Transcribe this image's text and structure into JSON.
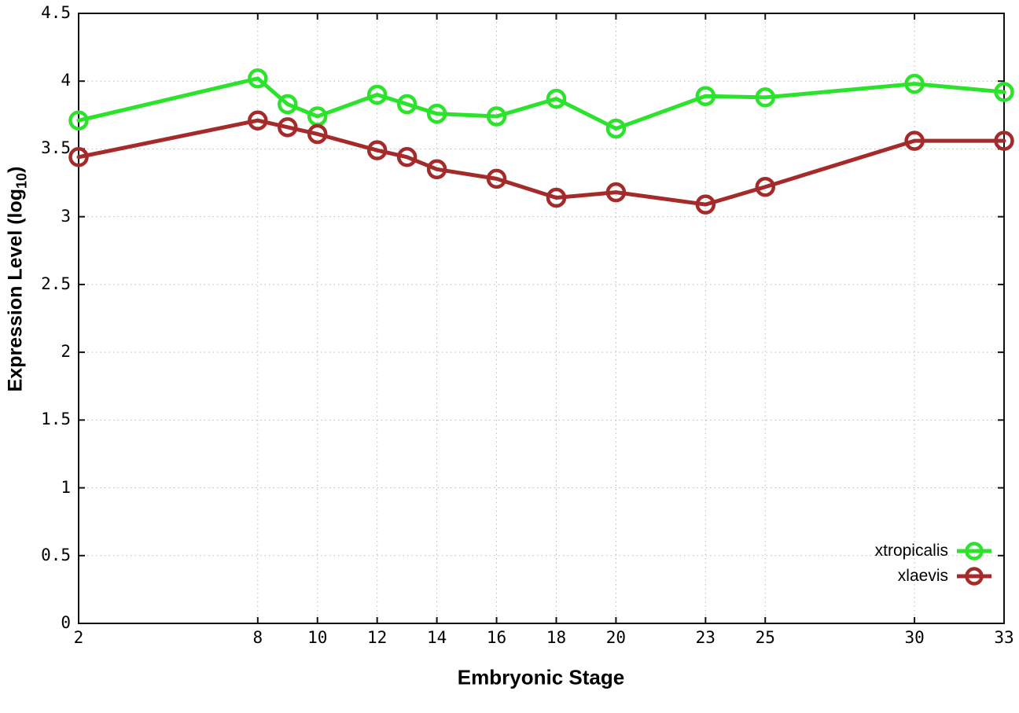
{
  "chart_data": {
    "type": "line",
    "title": "",
    "xlabel": "Embryonic Stage",
    "ylabel": "Expression Level (log10)",
    "ylabel_parts": {
      "prefix": "Expression Level (log",
      "sub": "10",
      "suffix": ")"
    },
    "x": [
      2,
      8,
      9,
      10,
      12,
      13,
      14,
      16,
      18,
      20,
      23,
      25,
      30,
      33
    ],
    "xlim": [
      2,
      33
    ],
    "ylim": [
      0,
      4.5
    ],
    "xticks": [
      2,
      8,
      10,
      12,
      14,
      16,
      18,
      20,
      23,
      25,
      30,
      33
    ],
    "yticks": [
      0,
      0.5,
      1,
      1.5,
      2,
      2.5,
      3,
      3.5,
      4,
      4.5
    ],
    "grid": true,
    "legend_position": "bottom-right",
    "series": [
      {
        "name": "xtropicalis",
        "color": "#2be32b",
        "values": [
          3.71,
          4.02,
          3.83,
          3.74,
          3.9,
          3.83,
          3.76,
          3.74,
          3.87,
          3.65,
          3.89,
          3.88,
          3.98,
          3.92
        ]
      },
      {
        "name": "xlaevis",
        "color": "#a52a2a",
        "values": [
          3.44,
          3.71,
          3.66,
          3.61,
          3.49,
          3.44,
          3.35,
          3.28,
          3.14,
          3.18,
          3.09,
          3.22,
          3.56,
          3.56
        ]
      }
    ],
    "colors": {
      "background": "#ffffff",
      "border": "#111111",
      "grid": "#b9b9b9",
      "text": "#000000"
    }
  }
}
